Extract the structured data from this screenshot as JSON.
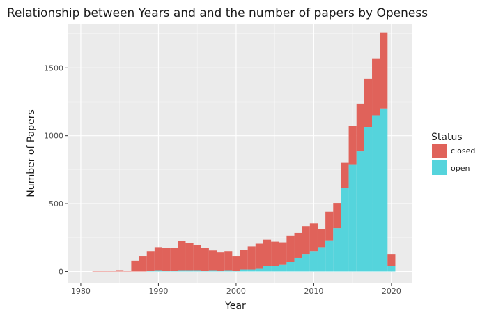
{
  "chart_data": {
    "type": "bar",
    "stacked": true,
    "title": "Relationship between Years and and the number of papers by Openess",
    "xlabel": "Year",
    "ylabel": "Number of Papers",
    "xlim": [
      1978.3,
      2022.7
    ],
    "ylim": [
      -85,
      1825
    ],
    "x_ticks": [
      1980,
      1990,
      2000,
      2010,
      2020
    ],
    "y_ticks": [
      0,
      500,
      1000,
      1500
    ],
    "grid": true,
    "legend": {
      "title": "Status",
      "position": "right"
    },
    "x": [
      1982,
      1983,
      1984,
      1985,
      1986,
      1987,
      1988,
      1989,
      1990,
      1991,
      1992,
      1993,
      1994,
      1995,
      1996,
      1997,
      1998,
      1999,
      2000,
      2001,
      2002,
      2003,
      2004,
      2005,
      2006,
      2007,
      2008,
      2009,
      2010,
      2011,
      2012,
      2013,
      2014,
      2015,
      2016,
      2017,
      2018,
      2019,
      2020
    ],
    "series": [
      {
        "name": "open",
        "color": "#55d4dc",
        "values": [
          0,
          0,
          0,
          0,
          0,
          0,
          0,
          5,
          10,
          5,
          5,
          10,
          10,
          10,
          5,
          10,
          5,
          10,
          5,
          15,
          15,
          20,
          40,
          40,
          50,
          70,
          100,
          130,
          150,
          180,
          230,
          320,
          615,
          790,
          885,
          1065,
          1150,
          1200,
          40
        ]
      },
      {
        "name": "closed",
        "color": "#e0625a",
        "values": [
          5,
          5,
          5,
          10,
          5,
          80,
          115,
          145,
          170,
          170,
          170,
          215,
          200,
          185,
          170,
          145,
          135,
          140,
          110,
          145,
          170,
          185,
          195,
          180,
          165,
          195,
          185,
          205,
          205,
          135,
          210,
          185,
          185,
          285,
          350,
          355,
          420,
          560,
          90
        ]
      }
    ]
  }
}
